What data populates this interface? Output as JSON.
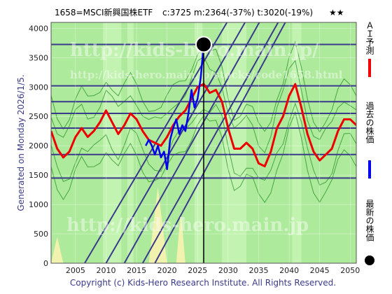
{
  "header": {
    "title": "1658=MSCI新興国株ETF",
    "stats": "c:3725  m:2364(-37%)  t:3020(-19%)",
    "stars": "★★"
  },
  "side_label": "Generated on Monday 2026/1/5.",
  "footer": "Copyright (c) Kids-Hero Research Institute. All Rights Reserved.",
  "watermarks": [
    "http://kids-hero.main.jp/",
    "http://kids-hero.main.jp/stocks/code1658.html",
    "http://kids-hero.main.jp"
  ],
  "legend": [
    {
      "label": "ＡＩ予測",
      "color": "#ee0000",
      "icon": "red-line-icon"
    },
    {
      "label": "過去の株価",
      "color": "#0000ee",
      "icon": "blue-line-icon"
    },
    {
      "label": "最新の株価",
      "color": "#000000",
      "icon": "black-dot-icon"
    }
  ],
  "colors": {
    "background_green": "#aeea9c",
    "band_light_green": "#c8f5b6",
    "yellow_band": "#f7f3b0",
    "prediction": "#ee0000",
    "history": "#0000ee",
    "latest": "#000000",
    "trend_lines": "#3a3a8a",
    "envelopes": "#1a8a1a"
  },
  "chart_data": {
    "type": "line",
    "xlim": [
      2001,
      2051
    ],
    "ylim": [
      0,
      4100
    ],
    "x_ticks": [
      2005,
      2010,
      2015,
      2020,
      2025,
      2030,
      2035,
      2040,
      2045,
      2050
    ],
    "y_ticks": [
      0,
      500,
      1000,
      1500,
      2000,
      2500,
      3000,
      3500,
      4000
    ],
    "grid": true,
    "horizontal_levels": [
      3725,
      3020,
      2750,
      2550,
      2300,
      1850,
      1450
    ],
    "latest_point": {
      "x": 2026.0,
      "y": 3725
    },
    "latest_vertical_line_x": 2026.0,
    "trend_lines": [
      {
        "x": [
          2006.5,
          2050
        ],
        "y": [
          0,
          7650
        ]
      },
      {
        "x": [
          2010,
          2050
        ],
        "y": [
          0,
          7200
        ]
      },
      {
        "x": [
          2013,
          2050
        ],
        "y": [
          0,
          6860
        ]
      },
      {
        "x": [
          2016,
          2050
        ],
        "y": [
          0,
          6280
        ]
      },
      {
        "x": [
          2018,
          2050
        ],
        "y": [
          0,
          6140
        ]
      }
    ],
    "series": [
      {
        "name": "ＡＩ予測",
        "x": [
          2001,
          2002,
          2003,
          2004,
          2005,
          2006,
          2007,
          2008,
          2009,
          2010,
          2011,
          2012,
          2013,
          2014,
          2015,
          2016,
          2017,
          2018,
          2019,
          2020,
          2021,
          2022,
          2023,
          2024,
          2025,
          2026,
          2027,
          2028,
          2029,
          2030,
          2031,
          2032,
          2033,
          2034,
          2035,
          2036,
          2037,
          2038,
          2039,
          2040,
          2041,
          2042,
          2043,
          2044,
          2045,
          2046,
          2047,
          2048,
          2049,
          2050,
          2051
        ],
        "y": [
          2250,
          1950,
          1800,
          1900,
          2150,
          2300,
          2150,
          2250,
          2400,
          2600,
          2400,
          2200,
          2350,
          2550,
          2450,
          2250,
          2100,
          2050,
          2000,
          2150,
          2350,
          2500,
          2600,
          2800,
          3000,
          3050,
          2900,
          2950,
          2750,
          2300,
          1950,
          1950,
          2050,
          1950,
          1700,
          1650,
          1900,
          2300,
          2500,
          2850,
          3050,
          2650,
          2200,
          1900,
          1750,
          1850,
          1950,
          2250,
          2450,
          2450,
          2350
        ]
      },
      {
        "name": "過去の株価",
        "x": [
          2016.5,
          2017,
          2017.5,
          2018,
          2018.5,
          2019,
          2019.5,
          2020,
          2020.5,
          2021,
          2021.5,
          2022,
          2022.5,
          2023,
          2023.5,
          2024,
          2024.5,
          2025,
          2025.5,
          2026
        ],
        "y": [
          2000,
          2100,
          2000,
          1850,
          2000,
          1800,
          1900,
          1600,
          2100,
          2300,
          2450,
          2200,
          2350,
          2250,
          2550,
          2950,
          2650,
          2800,
          3150,
          3725
        ]
      }
    ]
  }
}
